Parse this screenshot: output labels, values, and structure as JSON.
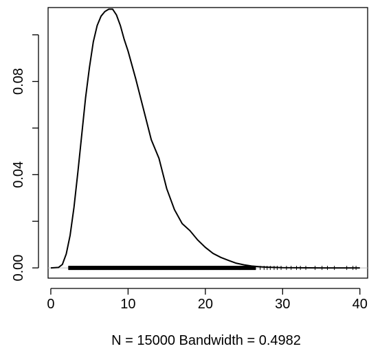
{
  "chart_data": {
    "type": "line",
    "title": "",
    "xlabel": "N = 15000   Bandwidth = 0.4982",
    "ylabel": "",
    "xlim": [
      -0.35,
      41.0
    ],
    "ylim": [
      -0.0044,
      0.1117
    ],
    "x_ticks": [
      0,
      10,
      20,
      30,
      40
    ],
    "x_tick_labels": [
      "0",
      "10",
      "20",
      "30",
      "40"
    ],
    "y_ticks": [
      0.0,
      0.02,
      0.04,
      0.06,
      0.08,
      0.1
    ],
    "y_tick_labels": [
      "0.00",
      "",
      "0.04",
      "",
      "0.08",
      ""
    ],
    "grid": false,
    "zero_line": true,
    "series": [
      {
        "x": [
          0,
          1,
          1.5,
          2,
          2.5,
          3,
          3.5,
          4,
          4.5,
          5,
          5.5,
          6,
          6.5,
          7,
          7.5,
          8,
          8.5,
          9,
          9.5,
          10,
          11,
          12,
          13,
          14,
          15,
          16,
          17,
          18,
          19,
          20,
          21,
          22,
          23,
          24,
          25,
          26,
          27,
          28,
          30,
          35,
          40
        ],
        "y": [
          0,
          0.0002,
          0.0015,
          0.006,
          0.014,
          0.026,
          0.041,
          0.057,
          0.073,
          0.086,
          0.097,
          0.104,
          0.108,
          0.11,
          0.111,
          0.111,
          0.1085,
          0.104,
          0.098,
          0.093,
          0.081,
          0.068,
          0.055,
          0.047,
          0.034,
          0.025,
          0.019,
          0.016,
          0.012,
          0.0088,
          0.0062,
          0.0045,
          0.0032,
          0.002,
          0.0013,
          0.0008,
          0.0005,
          0.0003,
          0.0001,
          0,
          0
        ]
      }
    ],
    "rug": {
      "dense_range": [
        2.3,
        26.5
      ],
      "sparse_points": [
        27.1,
        27.6,
        28.0,
        28.4,
        28.9,
        29.3,
        29.8,
        30.5,
        31.1,
        31.8,
        32.3,
        33.0,
        34.2,
        35.1,
        35.8,
        36.7,
        38.3,
        39.1,
        39.5
      ]
    }
  }
}
